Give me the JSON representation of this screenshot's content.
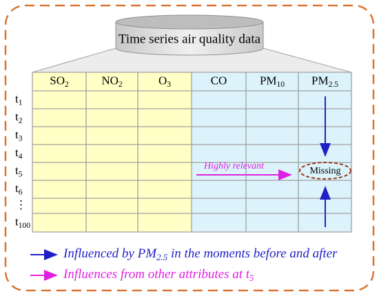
{
  "cylinder_label": "Time series air quality data",
  "table": {
    "columns": [
      [
        {
          "text": "SO"
        },
        {
          "sub": "2"
        }
      ],
      [
        {
          "text": "NO"
        },
        {
          "sub": "2"
        }
      ],
      [
        {
          "text": "O"
        },
        {
          "sub": "3"
        }
      ],
      [
        {
          "text": "CO"
        }
      ],
      [
        {
          "text": "PM"
        },
        {
          "sub": "10"
        }
      ],
      [
        {
          "text": "PM"
        },
        {
          "sub": "2.5"
        }
      ]
    ],
    "rows": [
      [
        {
          "text": "t"
        },
        {
          "sub": "1"
        }
      ],
      [
        {
          "text": "t"
        },
        {
          "sub": "2"
        }
      ],
      [
        {
          "text": "t"
        },
        {
          "sub": "3"
        }
      ],
      [
        {
          "text": "t"
        },
        {
          "sub": "4"
        }
      ],
      [
        {
          "text": "t"
        },
        {
          "sub": "5"
        }
      ],
      [
        {
          "text": "t"
        },
        {
          "sub": "6"
        }
      ],
      [
        {
          "text": "⋮"
        }
      ],
      [
        {
          "text": "t"
        },
        {
          "sub": "100"
        }
      ]
    ]
  },
  "annotations": {
    "relevance_label": "Highly relevant",
    "missing_label": "Missing"
  },
  "legend": [
    [
      {
        "text": "Influenced by PM"
      },
      {
        "sub": "2.5"
      },
      {
        "text": " in the moments before and after"
      }
    ],
    [
      {
        "text": "Influences from other attributes at t"
      },
      {
        "sub": "5"
      }
    ]
  ]
}
